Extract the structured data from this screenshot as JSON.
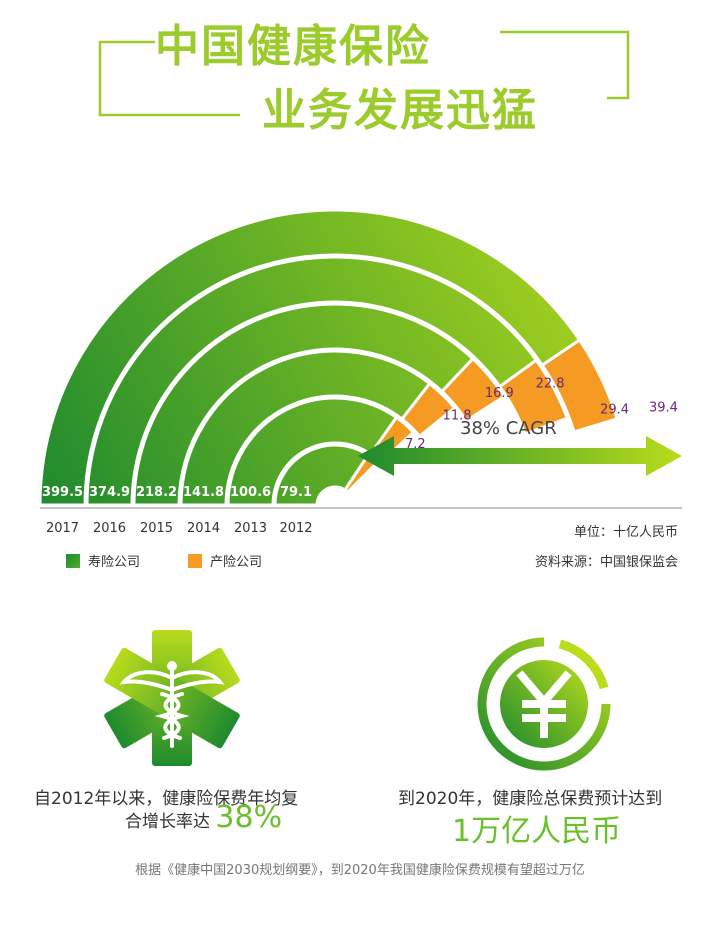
{
  "title": {
    "line1": "中国健康保险",
    "line2": "业务发展迅猛"
  },
  "colors": {
    "life_gradient_start": "#1e8a2e",
    "life_gradient_end": "#b9dc1c",
    "property": "#f59a22",
    "title": "#9ccc2c",
    "property_label": "#6a2a7a"
  },
  "chart_data": {
    "type": "bar",
    "layout": "radial-semicircle",
    "categories": [
      "2017",
      "2016",
      "2015",
      "2014",
      "2013",
      "2012"
    ],
    "series": [
      {
        "name": "寿险公司",
        "values": [
          399.5,
          374.9,
          218.2,
          141.8,
          100.6,
          79.1
        ]
      },
      {
        "name": "产险公司",
        "values": [
          39.4,
          29.4,
          22.8,
          16.9,
          11.8,
          7.2
        ]
      }
    ],
    "life_labels": [
      "399.5",
      "374.9",
      "218.2",
      "141.8",
      "100.6",
      "79.1"
    ],
    "property_labels": [
      "39.4",
      "29.4",
      "22.8",
      "16.9",
      "11.8",
      "7.2"
    ],
    "annotation": "38% CAGR",
    "unit": "单位：十亿人民币",
    "source": "资料来源：中国银保监会",
    "legend_placement": "bottom-left"
  },
  "legend": {
    "life": "寿险公司",
    "property": "产险公司"
  },
  "icons": {
    "left": "medical-caduceus-icon",
    "right": "yuan-coin-icon"
  },
  "captions": {
    "left_line1": "自2012年以来，健康险保费年均复",
    "left_line2_prefix": "合增长率达",
    "left_highlight": "38%",
    "right_line1": "到2020年，健康险总保费预计达到",
    "right_highlight": "1万亿人民币"
  },
  "footnote": "根据《健康中国2030规划纲要》，到2020年我国健康险保费规模有望超过万亿"
}
